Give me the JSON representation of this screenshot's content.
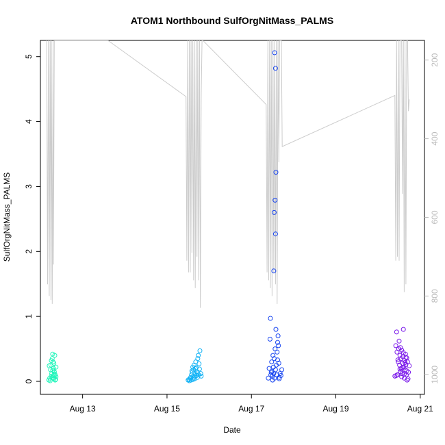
{
  "chart_data": {
    "type": "scatter",
    "title": "ATOM1 Northbound SulfOrgNitMass_PALMS",
    "xlabel": "Date",
    "ylabel": "SulfOrgNitMass_PALMS",
    "x_unit": "day of August",
    "xlim": [
      12.0,
      21.1
    ],
    "ylim": [
      -0.2,
      5.25
    ],
    "x_ticks": [
      {
        "value": 13,
        "label": "Aug 13"
      },
      {
        "value": 15,
        "label": "Aug 15"
      },
      {
        "value": 17,
        "label": "Aug 17"
      },
      {
        "value": 19,
        "label": "Aug 19"
      },
      {
        "value": 21,
        "label": "Aug 21"
      }
    ],
    "y_ticks": [
      0,
      1,
      2,
      3,
      4,
      5
    ],
    "secondary_axis": {
      "position": "right",
      "reversed": true,
      "ylim": [
        1050,
        150
      ],
      "ticks": [
        200,
        400,
        600,
        800,
        1000
      ],
      "color": "#bbbbbb"
    },
    "grid": false,
    "legend": "none",
    "series": [
      {
        "color": "#20f5bb",
        "x": [
          12.2,
          12.22,
          12.24,
          12.25,
          12.26,
          12.27,
          12.28,
          12.29,
          12.3,
          12.3,
          12.31,
          12.32,
          12.33,
          12.34,
          12.35,
          12.36,
          12.37,
          12.21,
          12.23,
          12.26,
          12.28,
          12.31,
          12.33,
          12.35,
          12.37,
          12.29,
          12.32,
          12.34
        ],
        "y": [
          0.02,
          0.05,
          0.18,
          0.25,
          0.08,
          0.12,
          0.35,
          0.42,
          0.3,
          0.05,
          0.2,
          0.28,
          0.15,
          0.4,
          0.1,
          0.03,
          0.22,
          0.24,
          0.01,
          0.32,
          0.06,
          0.09,
          0.14,
          0.02,
          0.07,
          0.17,
          0.04,
          0.11
        ]
      },
      {
        "color": "#11b2f5",
        "x": [
          15.5,
          15.52,
          15.55,
          15.57,
          15.58,
          15.6,
          15.61,
          15.62,
          15.63,
          15.64,
          15.65,
          15.66,
          15.67,
          15.68,
          15.7,
          15.71,
          15.72,
          15.73,
          15.74,
          15.75,
          15.76,
          15.78,
          15.8,
          15.81,
          15.53,
          15.59,
          15.66,
          15.69,
          15.72,
          15.77,
          15.62,
          15.56
        ],
        "y": [
          0.02,
          0.03,
          0.05,
          0.02,
          0.1,
          0.14,
          0.22,
          0.05,
          0.18,
          0.25,
          0.08,
          0.12,
          0.2,
          0.3,
          0.09,
          0.15,
          0.06,
          0.35,
          0.4,
          0.1,
          0.27,
          0.47,
          0.12,
          0.08,
          0.01,
          0.16,
          0.04,
          0.21,
          0.13,
          0.19,
          0.03,
          0.06
        ]
      },
      {
        "color": "#1845f0",
        "x": [
          17.4,
          17.42,
          17.44,
          17.45,
          17.46,
          17.48,
          17.49,
          17.5,
          17.51,
          17.52,
          17.53,
          17.54,
          17.55,
          17.56,
          17.57,
          17.58,
          17.59,
          17.6,
          17.61,
          17.62,
          17.63,
          17.64,
          17.65,
          17.66,
          17.68,
          17.7,
          17.72,
          17.55,
          17.57,
          17.58,
          17.56,
          17.54,
          17.57,
          17.53,
          17.5,
          17.47,
          17.62,
          17.66
        ],
        "y": [
          0.05,
          0.2,
          0.65,
          0.97,
          0.1,
          0.3,
          0.15,
          0.08,
          0.4,
          0.22,
          0.12,
          0.35,
          0.05,
          0.5,
          0.18,
          0.8,
          0.25,
          0.1,
          0.45,
          0.6,
          0.7,
          0.55,
          0.28,
          0.06,
          0.12,
          0.09,
          0.18,
          5.06,
          4.82,
          3.22,
          2.79,
          2.6,
          2.27,
          1.7,
          0.02,
          0.14,
          0.33,
          0.04
        ]
      },
      {
        "color": "#7a18ea",
        "x": [
          20.4,
          20.42,
          20.44,
          20.45,
          20.46,
          20.48,
          20.49,
          20.5,
          20.51,
          20.52,
          20.53,
          20.54,
          20.55,
          20.56,
          20.57,
          20.58,
          20.59,
          20.6,
          20.61,
          20.62,
          20.63,
          20.64,
          20.65,
          20.66,
          20.67,
          20.68,
          20.69,
          20.7,
          20.72,
          20.74,
          20.43,
          20.47,
          20.52,
          20.56,
          20.6,
          20.64,
          20.68,
          20.71,
          20.53,
          20.58,
          20.62,
          20.66
        ],
        "y": [
          0.08,
          0.55,
          0.76,
          0.45,
          0.1,
          0.3,
          0.5,
          0.62,
          0.25,
          0.4,
          0.15,
          0.35,
          0.2,
          0.48,
          0.12,
          0.28,
          0.38,
          0.8,
          0.22,
          0.05,
          0.32,
          0.18,
          0.42,
          0.26,
          0.1,
          0.36,
          0.02,
          0.3,
          0.14,
          0.24,
          0.09,
          0.33,
          0.19,
          0.07,
          0.44,
          0.29,
          0.16,
          0.04,
          0.52,
          0.21,
          0.11,
          0.37
        ]
      }
    ],
    "secondary_series": {
      "color": "#cccccc",
      "x": [
        12.15,
        12.17,
        12.19,
        12.21,
        12.23,
        12.25,
        12.26,
        12.28,
        12.3,
        12.31,
        12.33,
        12.35,
        12.37,
        12.38,
        12.4,
        13.6,
        15.45,
        15.47,
        15.49,
        15.51,
        15.53,
        15.55,
        15.57,
        15.59,
        15.61,
        15.63,
        15.65,
        15.67,
        15.69,
        15.71,
        15.73,
        15.75,
        15.77,
        15.79,
        15.81,
        15.83,
        15.85,
        17.35,
        17.37,
        17.39,
        17.41,
        17.43,
        17.45,
        17.47,
        17.49,
        17.51,
        17.53,
        17.55,
        17.57,
        17.59,
        17.61,
        17.63,
        17.65,
        17.67,
        17.69,
        17.71,
        17.73,
        20.4,
        20.42,
        20.44,
        20.46,
        20.48,
        20.5,
        20.52,
        20.54,
        20.56,
        20.58,
        20.6,
        20.62,
        20.64,
        20.66,
        20.68,
        20.7,
        20.72,
        20.74
      ],
      "y": [
        150,
        770,
        150,
        800,
        150,
        810,
        150,
        820,
        150,
        720,
        150,
        150,
        150,
        150,
        150,
        150,
        293,
        710,
        150,
        740,
        150,
        740,
        150,
        690,
        150,
        760,
        150,
        780,
        150,
        700,
        150,
        760,
        150,
        830,
        290,
        150,
        150,
        313,
        740,
        150,
        760,
        150,
        780,
        150,
        800,
        150,
        740,
        150,
        770,
        150,
        820,
        150,
        460,
        150,
        150,
        150,
        420,
        290,
        710,
        150,
        700,
        150,
        710,
        150,
        150,
        150,
        540,
        150,
        790,
        150,
        770,
        150,
        150,
        330,
        300
      ]
    }
  }
}
